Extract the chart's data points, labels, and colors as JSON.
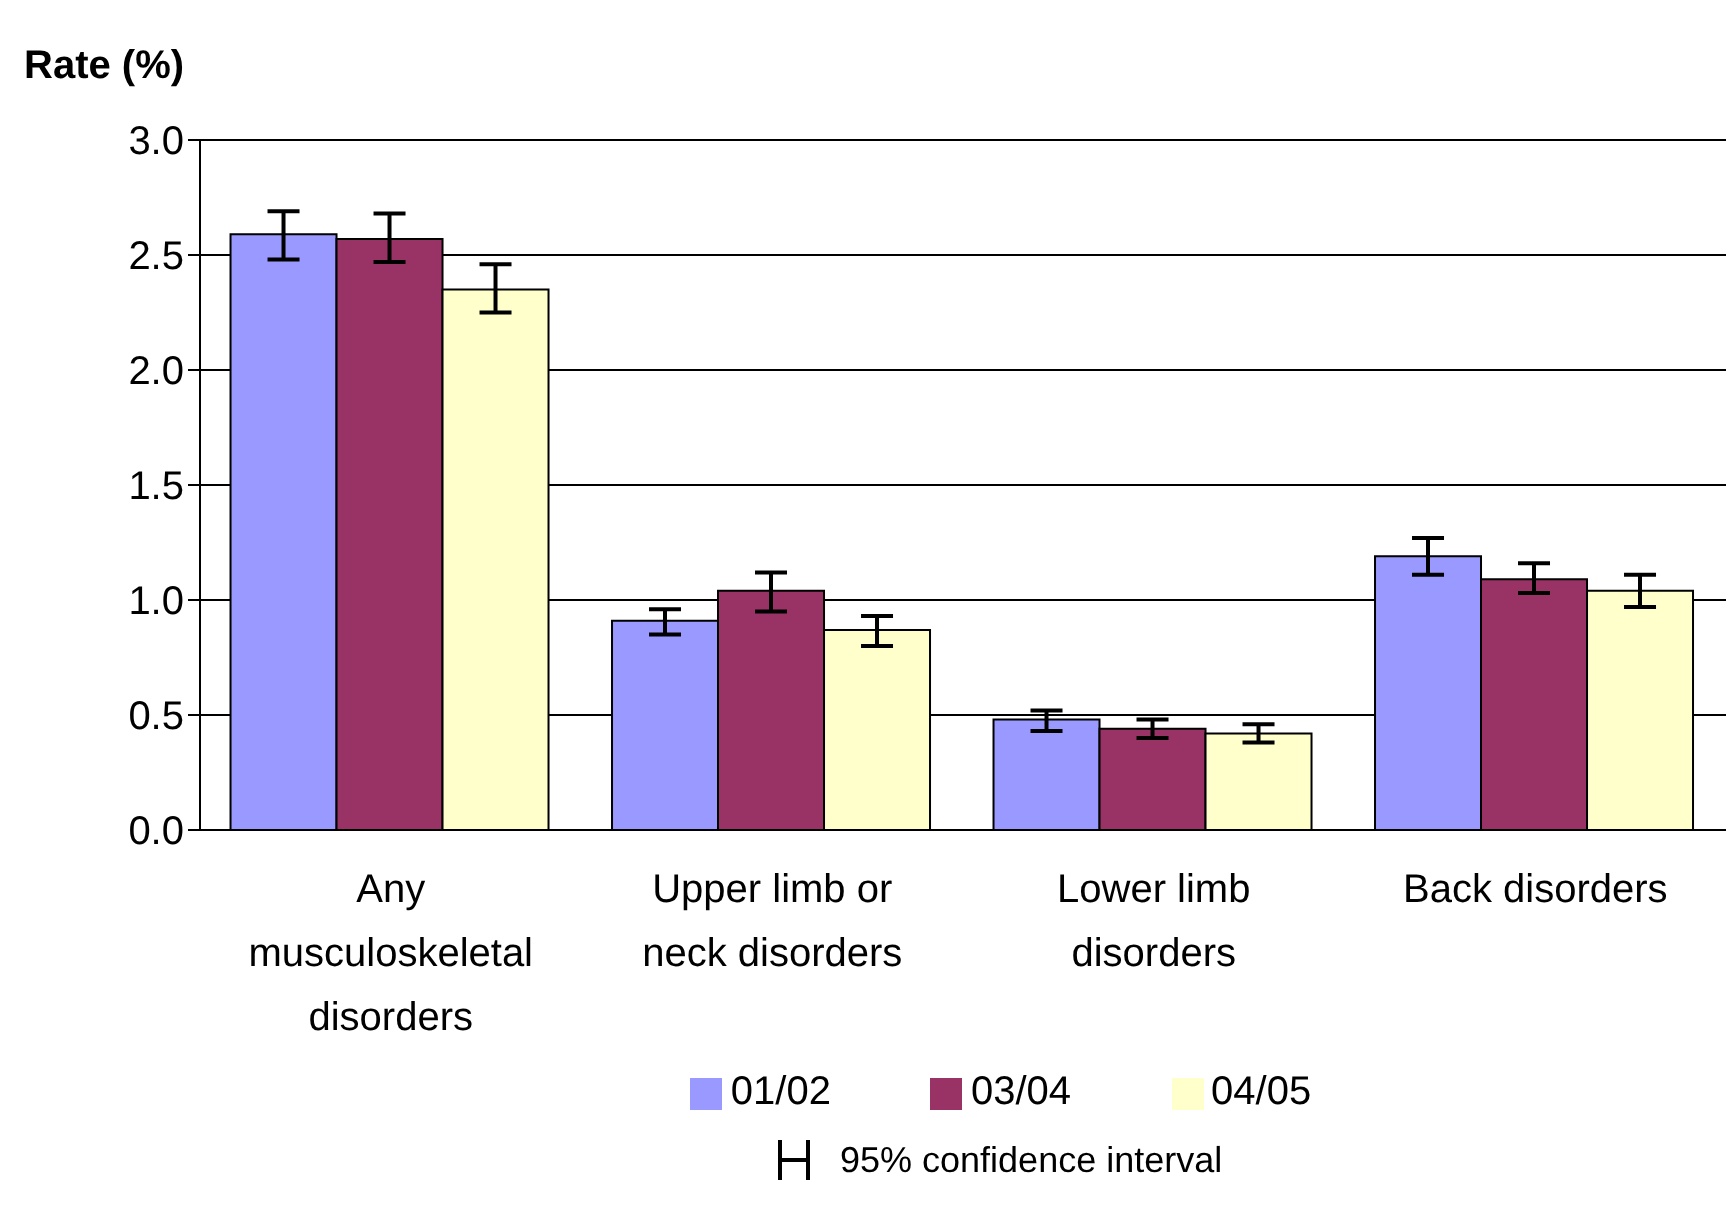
{
  "chart_data": {
    "type": "bar",
    "ylabel": "Rate (%)",
    "categories": [
      "Any musculoskeletal disorders",
      "Upper limb or neck disorders",
      "Lower limb disorders",
      "Back disorders"
    ],
    "series": [
      {
        "name": "01/02",
        "color": "#9999ff",
        "values": [
          2.59,
          0.91,
          0.48,
          1.19
        ],
        "errors": [
          [
            2.48,
            2.69
          ],
          [
            0.85,
            0.96
          ],
          [
            0.43,
            0.52
          ],
          [
            1.11,
            1.27
          ]
        ]
      },
      {
        "name": "03/04",
        "color": "#993366",
        "values": [
          2.57,
          1.04,
          0.44,
          1.09
        ],
        "errors": [
          [
            2.47,
            2.68
          ],
          [
            0.95,
            1.12
          ],
          [
            0.4,
            0.48
          ],
          [
            1.03,
            1.16
          ]
        ]
      },
      {
        "name": "04/05",
        "color": "#ffffcc",
        "values": [
          2.35,
          0.87,
          0.42,
          1.04
        ],
        "errors": [
          [
            2.25,
            2.46
          ],
          [
            0.8,
            0.93
          ],
          [
            0.38,
            0.46
          ],
          [
            0.97,
            1.11
          ]
        ]
      }
    ],
    "ylim": [
      0,
      3
    ],
    "yticks": [
      {
        "value": 0,
        "label": "0.0"
      },
      {
        "value": 0.5,
        "label": "0.5"
      },
      {
        "value": 1,
        "label": "1.0"
      },
      {
        "value": 1.5,
        "label": "1.5"
      },
      {
        "value": 2,
        "label": "2.0"
      },
      {
        "value": 2.5,
        "label": "2.5"
      },
      {
        "value": 3,
        "label": "3.0"
      }
    ],
    "grid": "y",
    "legend": "bottom",
    "annotations": [
      "95% confidence interval"
    ]
  }
}
